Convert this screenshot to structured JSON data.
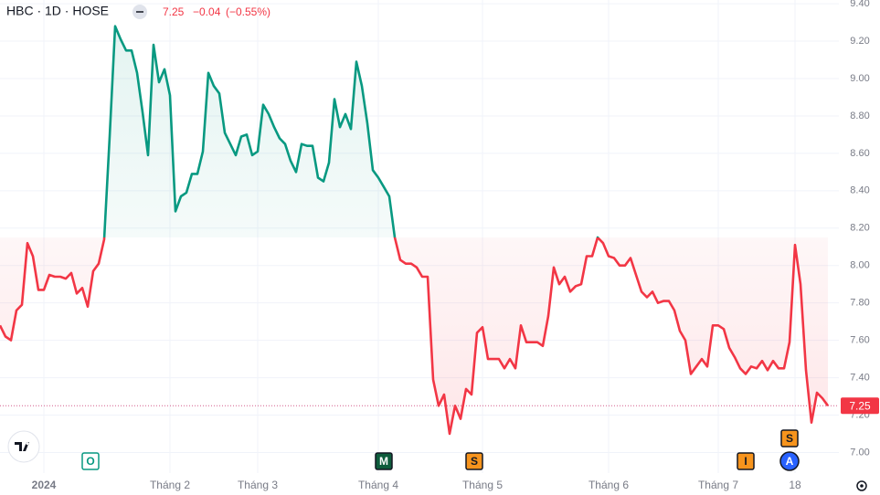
{
  "header": {
    "symbol": "HBC · 1D · HOSE",
    "last": "7.25",
    "change": "−0.04",
    "change_pct": "(−0.55%)"
  },
  "chart_data": {
    "type": "baseline",
    "values": [
      7.68,
      7.62,
      7.6,
      7.76,
      7.79,
      8.12,
      8.05,
      7.87,
      7.87,
      7.95,
      7.94,
      7.94,
      7.93,
      7.96,
      7.85,
      7.88,
      7.78,
      7.97,
      8.01,
      8.14,
      8.69,
      9.28,
      9.21,
      9.15,
      9.15,
      9.03,
      8.82,
      8.59,
      9.18,
      8.98,
      9.05,
      8.91,
      8.29,
      8.37,
      8.39,
      8.49,
      8.49,
      8.61,
      9.03,
      8.96,
      8.92,
      8.71,
      8.65,
      8.59,
      8.69,
      8.7,
      8.59,
      8.61,
      8.86,
      8.81,
      8.74,
      8.68,
      8.65,
      8.56,
      8.5,
      8.65,
      8.64,
      8.64,
      8.47,
      8.45,
      8.55,
      8.89,
      8.74,
      8.81,
      8.73,
      9.09,
      8.96,
      8.76,
      8.51,
      8.47,
      8.42,
      8.37,
      8.15,
      8.03,
      8.01,
      8.01,
      7.99,
      7.94,
      7.94,
      7.39,
      7.25,
      7.31,
      7.1,
      7.25,
      7.18,
      7.34,
      7.31,
      7.64,
      7.67,
      7.5,
      7.5,
      7.5,
      7.45,
      7.5,
      7.45,
      7.68,
      7.59,
      7.59,
      7.59,
      7.57,
      7.73,
      7.99,
      7.9,
      7.94,
      7.86,
      7.89,
      7.9,
      8.05,
      8.05,
      8.15,
      8.12,
      8.05,
      8.04,
      8.0,
      8.0,
      8.04,
      7.95,
      7.86,
      7.83,
      7.86,
      7.8,
      7.81,
      7.81,
      7.76,
      7.65,
      7.6,
      7.42,
      7.46,
      7.5,
      7.46,
      7.68,
      7.68,
      7.66,
      7.56,
      7.51,
      7.45,
      7.42,
      7.46,
      7.45,
      7.49,
      7.44,
      7.49,
      7.45,
      7.45,
      7.59,
      8.11,
      7.9,
      7.44,
      7.16,
      7.32,
      7.29,
      7.25
    ],
    "baseline": 8.15,
    "up_color": "#089981",
    "down_color": "#f23645",
    "last_label": "7.25",
    "xlim": [
      0,
      153
    ],
    "xticks": [
      {
        "value": 8,
        "label": "2024"
      },
      {
        "value": 31,
        "label": "Tháng 2"
      },
      {
        "value": 47,
        "label": "Tháng 3"
      },
      {
        "value": 69,
        "label": "Tháng 4"
      },
      {
        "value": 88,
        "label": "Tháng 5"
      },
      {
        "value": 111,
        "label": "Tháng 6"
      },
      {
        "value": 131,
        "label": "Tháng 7"
      },
      {
        "value": 145,
        "label": "18"
      }
    ],
    "ylim": [
      6.89,
      9.42
    ],
    "yticks": [
      {
        "value": 7.0,
        "label": "7.00"
      },
      {
        "value": 7.2,
        "label": "7.20"
      },
      {
        "value": 7.4,
        "label": "7.40"
      },
      {
        "value": 7.6,
        "label": "7.60"
      },
      {
        "value": 7.8,
        "label": "7.80"
      },
      {
        "value": 8.0,
        "label": "8.00"
      },
      {
        "value": 8.2,
        "label": "8.20"
      },
      {
        "value": 8.4,
        "label": "8.40"
      },
      {
        "value": 8.6,
        "label": "8.60"
      },
      {
        "value": 8.8,
        "label": "8.80"
      },
      {
        "value": 9.0,
        "label": "9.00"
      },
      {
        "value": 9.2,
        "label": "9.20"
      },
      {
        "value": 9.4,
        "label": "9.40"
      }
    ],
    "grid": true,
    "events": [
      {
        "label": "O",
        "x": 16.5,
        "color": "#ffffff",
        "text_color": "#089981",
        "shape": "square"
      },
      {
        "label": "M",
        "x": 70,
        "color": "#0e5c3c",
        "text_color": "#ffffff",
        "shape": "square"
      },
      {
        "label": "S",
        "x": 86.5,
        "color": "#f7941d",
        "text_color": "#131722",
        "shape": "square"
      },
      {
        "label": "I",
        "x": 136,
        "color": "#f7941d",
        "text_color": "#131722",
        "shape": "square"
      },
      {
        "label": "S",
        "x": 144,
        "color": "#f7941d",
        "text_color": "#131722",
        "shape": "square"
      },
      {
        "label": "A",
        "x": 144,
        "color": "#2962ff",
        "text_color": "#ffffff",
        "shape": "circle"
      }
    ]
  }
}
